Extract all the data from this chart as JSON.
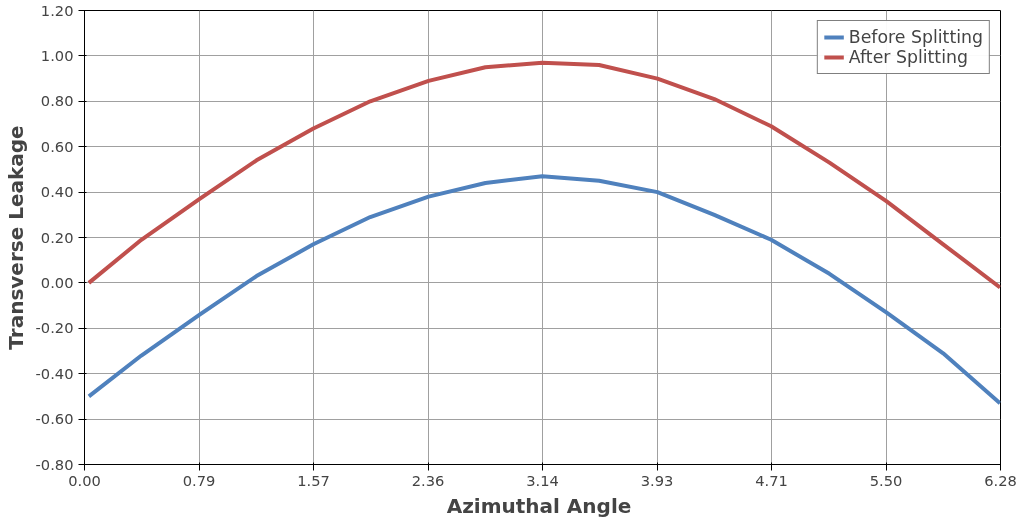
{
  "chart_data": {
    "type": "line",
    "xlabel": "Azimuthal  Angle",
    "ylabel": "Transverse Leakage",
    "x": [
      0.03,
      0.39,
      0.79,
      1.18,
      1.57,
      1.96,
      2.36,
      2.75,
      3.14,
      3.53,
      3.93,
      4.32,
      4.71,
      5.11,
      5.5,
      5.89,
      6.28
    ],
    "series": [
      {
        "name": "Before Splitting",
        "color": "#4f81bd",
        "values": [
          -0.5,
          -0.32,
          -0.14,
          0.03,
          0.17,
          0.29,
          0.38,
          0.44,
          0.47,
          0.45,
          0.4,
          0.3,
          0.19,
          0.04,
          -0.13,
          -0.31,
          -0.53
        ]
      },
      {
        "name": "After Splitting",
        "color": "#c0504d",
        "values": [
          0.0,
          0.19,
          0.37,
          0.54,
          0.68,
          0.8,
          0.89,
          0.95,
          0.97,
          0.96,
          0.9,
          0.81,
          0.69,
          0.53,
          0.36,
          0.17,
          -0.02
        ]
      }
    ],
    "xlim": [
      0,
      6.2832
    ],
    "ylim": [
      -0.8,
      1.2
    ],
    "xticks": [
      {
        "value": 0,
        "label": "0.00"
      },
      {
        "value": 0.7854,
        "label": "0.79"
      },
      {
        "value": 1.5708,
        "label": "1.57"
      },
      {
        "value": 2.3562,
        "label": "2.36"
      },
      {
        "value": 3.1416,
        "label": "3.14"
      },
      {
        "value": 3.927,
        "label": "3.93"
      },
      {
        "value": 4.7124,
        "label": "4.71"
      },
      {
        "value": 5.4978,
        "label": "5.50"
      },
      {
        "value": 6.2832,
        "label": "6.28"
      }
    ],
    "yticks": [
      {
        "value": -0.8,
        "label": "-0.80"
      },
      {
        "value": -0.6,
        "label": "-0.60"
      },
      {
        "value": -0.4,
        "label": "-0.40"
      },
      {
        "value": -0.2,
        "label": "-0.20"
      },
      {
        "value": 0,
        "label": "0.00"
      },
      {
        "value": 0.2,
        "label": "0.20"
      },
      {
        "value": 0.4,
        "label": "0.40"
      },
      {
        "value": 0.6,
        "label": "0.60"
      },
      {
        "value": 0.8,
        "label": "0.80"
      },
      {
        "value": 1.0,
        "label": "1.00"
      },
      {
        "value": 1.2,
        "label": "1.20"
      }
    ],
    "grid": true,
    "legend": "top right",
    "marker": "none",
    "line_style": "solid"
  }
}
